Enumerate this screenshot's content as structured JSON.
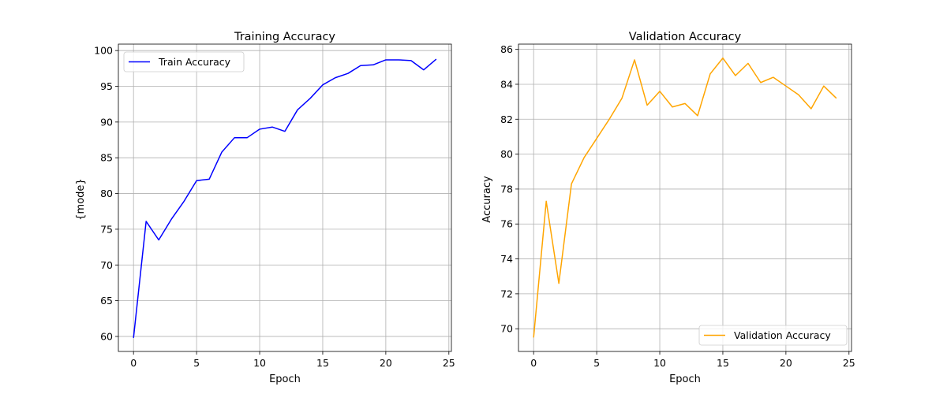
{
  "chart_data": [
    {
      "type": "line",
      "title": "Training Accuracy",
      "xlabel": "Epoch",
      "ylabel": "{mode}",
      "xlim": [
        -1.2,
        25.2
      ],
      "ylim": [
        57.9,
        100.9
      ],
      "xticks": [
        0,
        5,
        10,
        15,
        20,
        25
      ],
      "yticks": [
        60,
        65,
        70,
        75,
        80,
        85,
        90,
        95,
        100
      ],
      "grid": true,
      "legend_position": "top-left",
      "series": [
        {
          "name": "Train Accuracy",
          "color": "#0000ff",
          "x": [
            0,
            1,
            2,
            3,
            4,
            5,
            6,
            7,
            8,
            9,
            10,
            11,
            12,
            13,
            14,
            15,
            16,
            17,
            18,
            19,
            20,
            21,
            22,
            23,
            24
          ],
          "y": [
            59.8,
            76.1,
            73.5,
            76.4,
            78.9,
            81.8,
            82.0,
            85.8,
            87.8,
            87.8,
            89.0,
            89.3,
            88.7,
            91.7,
            93.3,
            95.2,
            96.2,
            96.8,
            97.9,
            98.0,
            98.7,
            98.7,
            98.6,
            97.3,
            98.8
          ]
        }
      ]
    },
    {
      "type": "line",
      "title": "Validation Accuracy",
      "xlabel": "Epoch",
      "ylabel": "Accuracy",
      "xlim": [
        -1.2,
        25.2
      ],
      "ylim": [
        68.7,
        86.3
      ],
      "xticks": [
        0,
        5,
        10,
        15,
        20,
        25
      ],
      "yticks": [
        70,
        72,
        74,
        76,
        78,
        80,
        82,
        84,
        86
      ],
      "grid": true,
      "legend_position": "bottom-right",
      "series": [
        {
          "name": "Validation Accuracy",
          "color": "#ffa500",
          "x": [
            0,
            1,
            2,
            3,
            4,
            5,
            6,
            7,
            8,
            9,
            10,
            11,
            12,
            13,
            14,
            15,
            16,
            17,
            18,
            19,
            20,
            21,
            22,
            23,
            24
          ],
          "y": [
            69.5,
            77.3,
            72.6,
            78.3,
            79.8,
            80.9,
            82.0,
            83.2,
            85.4,
            82.8,
            83.6,
            82.7,
            82.9,
            82.2,
            84.6,
            85.5,
            84.5,
            85.2,
            84.1,
            84.4,
            83.9,
            83.4,
            82.6,
            83.9,
            83.2
          ]
        }
      ]
    }
  ]
}
